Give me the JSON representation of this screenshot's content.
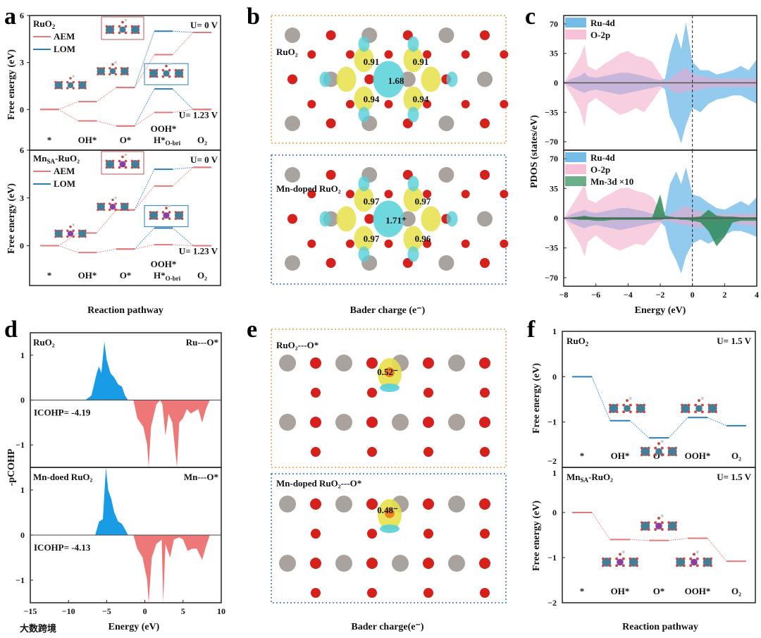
{
  "colors": {
    "aem": "#e07b7b",
    "lom": "#2a7fb8",
    "ru": "#aaa39d",
    "o": "#d6201c",
    "ru4d": "#3aa0e0",
    "o2p": "#f3a6c8",
    "mn3d": "#2e8b57",
    "cohp_pos": "#1a9be6",
    "cohp_neg": "#ee7777",
    "yellow": "#e8e04a",
    "cyan": "#56d0d8"
  },
  "panel_letters": [
    "a",
    "b",
    "c",
    "d",
    "e",
    "f"
  ],
  "watermark": "大数跨境",
  "panel_b": {
    "axis_label": "Bader charge (e⁻)",
    "top": {
      "title": "RuO₂",
      "charges": [
        "0.91",
        "0.91",
        "1.68",
        "0.94",
        "0.94"
      ]
    },
    "bottom": {
      "title": "Mn-doped RuO₂",
      "charges": [
        "0.97",
        "0.97",
        "1.71⁺",
        "0.97",
        "0.96"
      ]
    }
  },
  "panel_e": {
    "axis_label": "Bader charge(e⁻)",
    "top": {
      "title": "RuO₂---O*",
      "charge": "0.52⁻"
    },
    "bottom": {
      "title": "Mn-doped RuO₂---O*",
      "charge": "0.48⁻"
    }
  },
  "chart_data": [
    {
      "id": "a",
      "type": "line",
      "subtype": "free-energy-diagram",
      "xlabel": "Reaction pathway",
      "ylabel": "Free energy (eV)",
      "categories": [
        "*",
        "OH*",
        "O*",
        "OOH*\nH*O-bri",
        "O₂"
      ],
      "legend": [
        "AEM",
        "LOM"
      ],
      "legend_placement": "top-left",
      "ylim": [
        -2.6,
        6
      ],
      "yticks": [
        0,
        3,
        6
      ],
      "panels": [
        {
          "title": "RuO₂",
          "title_parts": [
            "RuO",
            "2",
            ""
          ],
          "series": [
            {
              "name": "AEM U=0 V",
              "values": [
                0,
                0.5,
                1.4,
                3.5,
                4.92
              ]
            },
            {
              "name": "AEM U=1.23 V",
              "values": [
                0,
                -0.73,
                -1.06,
                -0.19,
                0
              ]
            },
            {
              "name": "LOM U=0 V",
              "values": [
                null,
                null,
                1.4,
                5.0,
                4.92
              ]
            },
            {
              "name": "LOM U=1.23 V",
              "values": [
                null,
                null,
                -1.06,
                1.31,
                0
              ]
            }
          ],
          "annotations": [
            "U= 0 V",
            "U= 1.23 V"
          ]
        },
        {
          "title": "MnSA-RuO₂",
          "title_parts": [
            "Mn",
            "SA",
            "-RuO₂"
          ],
          "series": [
            {
              "name": "AEM U=0 V",
              "values": [
                0,
                0.8,
                2.25,
                3.75,
                4.92
              ]
            },
            {
              "name": "AEM U=1.23 V",
              "values": [
                0,
                -0.43,
                -0.21,
                0.06,
                0
              ]
            },
            {
              "name": "LOM U=0 V",
              "values": [
                null,
                null,
                2.25,
                4.8,
                4.92
              ]
            },
            {
              "name": "LOM U=1.23 V",
              "values": [
                null,
                null,
                -0.21,
                1.11,
                0
              ]
            }
          ],
          "annotations": [
            "U= 0 V",
            "U= 1.23 V"
          ]
        }
      ]
    },
    {
      "id": "c",
      "type": "area",
      "subtype": "PDOS",
      "xlabel": "Energy (eV)",
      "ylabel": "PDOS (states/eV)",
      "xlim": [
        -8,
        4
      ],
      "xticks": [
        -8,
        -6,
        -4,
        -2,
        0,
        2,
        4
      ],
      "ylim": [
        -80,
        80
      ],
      "yticks": [
        -70,
        -35,
        0,
        35,
        70
      ],
      "x": [
        -8,
        -7.5,
        -7,
        -6.7,
        -6.5,
        -6,
        -5.5,
        -5,
        -4.5,
        -4,
        -3.5,
        -3,
        -2.5,
        -2,
        -1.7,
        -1.4,
        -1,
        -0.7,
        -0.4,
        0,
        0.5,
        1,
        1.5,
        2,
        2.5,
        3,
        3.5,
        4
      ],
      "panels": [
        {
          "series": [
            {
              "name": "Ru-4d",
              "up": [
                0,
                5,
                8,
                12,
                8,
                6,
                8,
                10,
                12,
                12,
                10,
                8,
                5,
                3,
                5,
                35,
                60,
                40,
                72,
                25,
                15,
                15,
                10,
                12,
                15,
                20,
                15,
                28
              ],
              "down": [
                0,
                -5,
                -10,
                -12,
                -10,
                -8,
                -10,
                -12,
                -14,
                -12,
                -10,
                -8,
                -6,
                -4,
                -8,
                -40,
                -55,
                -72,
                -50,
                -30,
                -35,
                -25,
                -20,
                -18,
                -15,
                -15,
                -20,
                -25
              ]
            },
            {
              "name": "O-2p",
              "up": [
                0,
                15,
                30,
                45,
                20,
                15,
                22,
                28,
                35,
                38,
                32,
                30,
                25,
                10,
                2,
                5,
                10,
                15,
                18,
                10,
                8,
                6,
                5,
                5,
                5,
                5,
                5,
                5
              ],
              "down": [
                0,
                -15,
                -32,
                -52,
                -25,
                -18,
                -25,
                -32,
                -38,
                -35,
                -30,
                -35,
                -22,
                -8,
                -3,
                -8,
                -12,
                -12,
                -10,
                -10,
                -8,
                -6,
                -5,
                -5,
                -5,
                -5,
                -5,
                -5
              ]
            }
          ]
        },
        {
          "series": [
            {
              "name": "Ru-4d",
              "up": [
                0,
                5,
                8,
                10,
                8,
                6,
                8,
                10,
                12,
                12,
                10,
                8,
                5,
                3,
                8,
                40,
                55,
                40,
                60,
                28,
                25,
                18,
                12,
                10,
                15,
                20,
                15,
                25
              ],
              "down": [
                0,
                -6,
                -10,
                -12,
                -10,
                -8,
                -10,
                -12,
                -14,
                -12,
                -10,
                -8,
                -6,
                -4,
                -10,
                -35,
                -50,
                -65,
                -45,
                -30,
                -25,
                -30,
                -25,
                -20,
                -15,
                -15,
                -18,
                -22
              ]
            },
            {
              "name": "O-2p",
              "up": [
                0,
                15,
                30,
                40,
                22,
                18,
                25,
                30,
                35,
                36,
                32,
                30,
                25,
                10,
                2,
                5,
                8,
                12,
                15,
                10,
                8,
                6,
                5,
                5,
                5,
                5,
                5,
                5
              ],
              "down": [
                0,
                -15,
                -30,
                -45,
                -28,
                -20,
                -28,
                -34,
                -38,
                -34,
                -30,
                -32,
                -22,
                -8,
                -2,
                -4,
                -6,
                -8,
                -8,
                -10,
                -12,
                -8,
                -6,
                -5,
                -5,
                -8,
                -8,
                -10
              ]
            },
            {
              "name": "Mn-3d ×10",
              "up": [
                0,
                1,
                2,
                3,
                2,
                1,
                1,
                1,
                1,
                1,
                1,
                1,
                1,
                28,
                3,
                2,
                1,
                1,
                1,
                1,
                2,
                10,
                3,
                2,
                2,
                1,
                1,
                1
              ],
              "down": [
                0,
                -1,
                -2,
                -2,
                -2,
                -3,
                -3,
                -2,
                -2,
                -2,
                -2,
                -2,
                -2,
                -2,
                -1,
                -1,
                -1,
                -2,
                -2,
                -3,
                -5,
                -15,
                -33,
                -22,
                -5,
                -3,
                -3,
                -3
              ]
            }
          ]
        }
      ]
    },
    {
      "id": "d",
      "type": "area",
      "subtype": "pCOHP",
      "xlabel": "Energy (eV)",
      "ylabel": "-pCOHP",
      "xlim": [
        -15,
        10
      ],
      "xticks": [
        -15,
        -10,
        -5,
        0,
        5,
        10
      ],
      "ylim": [
        -1.5,
        1.5
      ],
      "yticks": [
        -1,
        0,
        1
      ],
      "panels": [
        {
          "title": "RuO₂",
          "bond": "Ru---O*",
          "icohp": "ICOHP= -4.19",
          "points": [
            [
              -7.8,
              0
            ],
            [
              -7,
              0.1
            ],
            [
              -6.3,
              0.6
            ],
            [
              -6,
              0.75
            ],
            [
              -5.7,
              0.6
            ],
            [
              -5.3,
              1.3
            ],
            [
              -5,
              0.9
            ],
            [
              -4.5,
              0.6
            ],
            [
              -4,
              0.5
            ],
            [
              -3.5,
              0.35
            ],
            [
              -3,
              0.3
            ],
            [
              -2.6,
              0.1
            ],
            [
              -2.2,
              0
            ],
            [
              -1.5,
              0
            ],
            [
              -1,
              -0.4
            ],
            [
              -0.2,
              -0.6
            ],
            [
              0.3,
              -1.0
            ],
            [
              0.5,
              -1.5
            ],
            [
              0.8,
              -0.6
            ],
            [
              1.5,
              -0.1
            ],
            [
              2,
              0
            ],
            [
              2.3,
              -0.1
            ],
            [
              2.7,
              -0.8
            ],
            [
              3.1,
              -0.3
            ],
            [
              3.6,
              -0.5
            ],
            [
              4.2,
              -1.5
            ],
            [
              4.5,
              -0.5
            ],
            [
              5,
              -0.4
            ],
            [
              5.5,
              -0.2
            ],
            [
              6,
              -0.3
            ],
            [
              6.5,
              -0.25
            ],
            [
              7,
              -0.2
            ],
            [
              7.5,
              -0.5
            ],
            [
              8,
              -0.2
            ],
            [
              8.5,
              0
            ]
          ]
        },
        {
          "title": "Mn-doed RuO₂",
          "bond": "Mn---O*",
          "icohp": "ICOHP= -4.13",
          "points": [
            [
              -6.5,
              0
            ],
            [
              -6,
              0.3
            ],
            [
              -5.5,
              0.35
            ],
            [
              -5.1,
              1.5
            ],
            [
              -4.8,
              1.0
            ],
            [
              -4.4,
              0.8
            ],
            [
              -4,
              0.5
            ],
            [
              -3.5,
              0.3
            ],
            [
              -3,
              0.25
            ],
            [
              -2.5,
              0.1
            ],
            [
              -2.2,
              0
            ],
            [
              -1.5,
              0
            ],
            [
              -1,
              -0.3
            ],
            [
              -0.3,
              -0.5
            ],
            [
              0.3,
              -1.0
            ],
            [
              0.5,
              -1.5
            ],
            [
              0.9,
              -0.5
            ],
            [
              1.5,
              -0.2
            ],
            [
              2.2,
              -0.1
            ],
            [
              2.4,
              -1.5
            ],
            [
              2.7,
              -0.2
            ],
            [
              3.3,
              -0.5
            ],
            [
              3.8,
              -0.1
            ],
            [
              4.5,
              -0.05
            ],
            [
              5,
              -0.1
            ],
            [
              5.6,
              -0.35
            ],
            [
              6.2,
              -0.3
            ],
            [
              6.8,
              -0.3
            ],
            [
              7.5,
              -0.55
            ],
            [
              8,
              -0.25
            ],
            [
              8.5,
              0
            ]
          ]
        }
      ]
    },
    {
      "id": "f",
      "type": "line",
      "subtype": "free-energy-diagram",
      "xlabel": "Reaction pathway",
      "ylabel": "Free energy (eV)",
      "categories": [
        "*",
        "OH*",
        "O*",
        "OOH*",
        "O₂"
      ],
      "ylim": [
        -2,
        1
      ],
      "yticks": [
        -2,
        -1,
        0,
        1
      ],
      "panels": [
        {
          "title_parts": [
            "RuO",
            "2",
            ""
          ],
          "annotation": "U= 1.5 V",
          "values": [
            0,
            -0.97,
            -1.35,
            -0.9,
            -1.08
          ]
        },
        {
          "title_parts": [
            "Mn",
            "SA",
            "-RuO₂"
          ],
          "annotation": "U= 1.5 V",
          "values": [
            0,
            -0.6,
            -0.62,
            -0.57,
            -1.08
          ]
        }
      ]
    }
  ]
}
